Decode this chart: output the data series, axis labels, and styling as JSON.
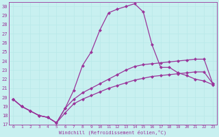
{
  "xlabel": "Windchill (Refroidissement éolien,°C)",
  "bg_color": "#c8f0f0",
  "line_color": "#993399",
  "grid_color": "#b8e8e8",
  "xlim": [
    -0.5,
    23.5
  ],
  "ylim": [
    17,
    30.5
  ],
  "xticks": [
    0,
    1,
    2,
    3,
    4,
    5,
    6,
    7,
    8,
    9,
    10,
    11,
    12,
    13,
    14,
    15,
    16,
    17,
    18,
    19,
    20,
    21,
    22,
    23
  ],
  "yticks": [
    17,
    18,
    19,
    20,
    21,
    22,
    23,
    24,
    25,
    26,
    27,
    28,
    29,
    30
  ],
  "curve_peak_x": [
    0,
    1,
    2,
    3,
    4,
    5,
    6,
    7,
    8,
    9,
    10,
    11,
    12,
    13,
    14,
    15,
    16,
    17,
    18,
    19,
    20,
    21,
    22,
    23
  ],
  "curve_peak_y": [
    19.8,
    19.0,
    18.5,
    18.0,
    17.8,
    17.2,
    18.8,
    20.8,
    23.5,
    25.0,
    27.4,
    29.3,
    29.7,
    30.0,
    30.3,
    29.4,
    25.8,
    23.3,
    23.3,
    22.7,
    22.4,
    22.0,
    21.8,
    21.4
  ],
  "curve_mid_x": [
    0,
    1,
    2,
    3,
    4,
    5,
    6,
    7,
    8,
    9,
    10,
    11,
    12,
    13,
    14,
    15,
    16,
    17,
    18,
    19,
    20,
    21,
    22,
    23
  ],
  "curve_mid_y": [
    19.8,
    19.0,
    18.5,
    18.0,
    17.8,
    17.2,
    18.8,
    19.8,
    20.5,
    21.0,
    21.5,
    22.0,
    22.5,
    23.0,
    23.4,
    23.6,
    23.7,
    23.8,
    23.9,
    24.0,
    24.1,
    24.2,
    24.2,
    21.5
  ],
  "curve_low_x": [
    0,
    1,
    2,
    3,
    4,
    5,
    6,
    7,
    8,
    9,
    10,
    11,
    12,
    13,
    14,
    15,
    16,
    17,
    18,
    19,
    20,
    21,
    22,
    23
  ],
  "curve_low_y": [
    19.8,
    19.0,
    18.5,
    18.0,
    17.8,
    17.2,
    18.3,
    19.3,
    19.8,
    20.2,
    20.6,
    21.0,
    21.3,
    21.6,
    21.9,
    22.1,
    22.3,
    22.4,
    22.5,
    22.6,
    22.7,
    22.8,
    22.8,
    21.5
  ]
}
